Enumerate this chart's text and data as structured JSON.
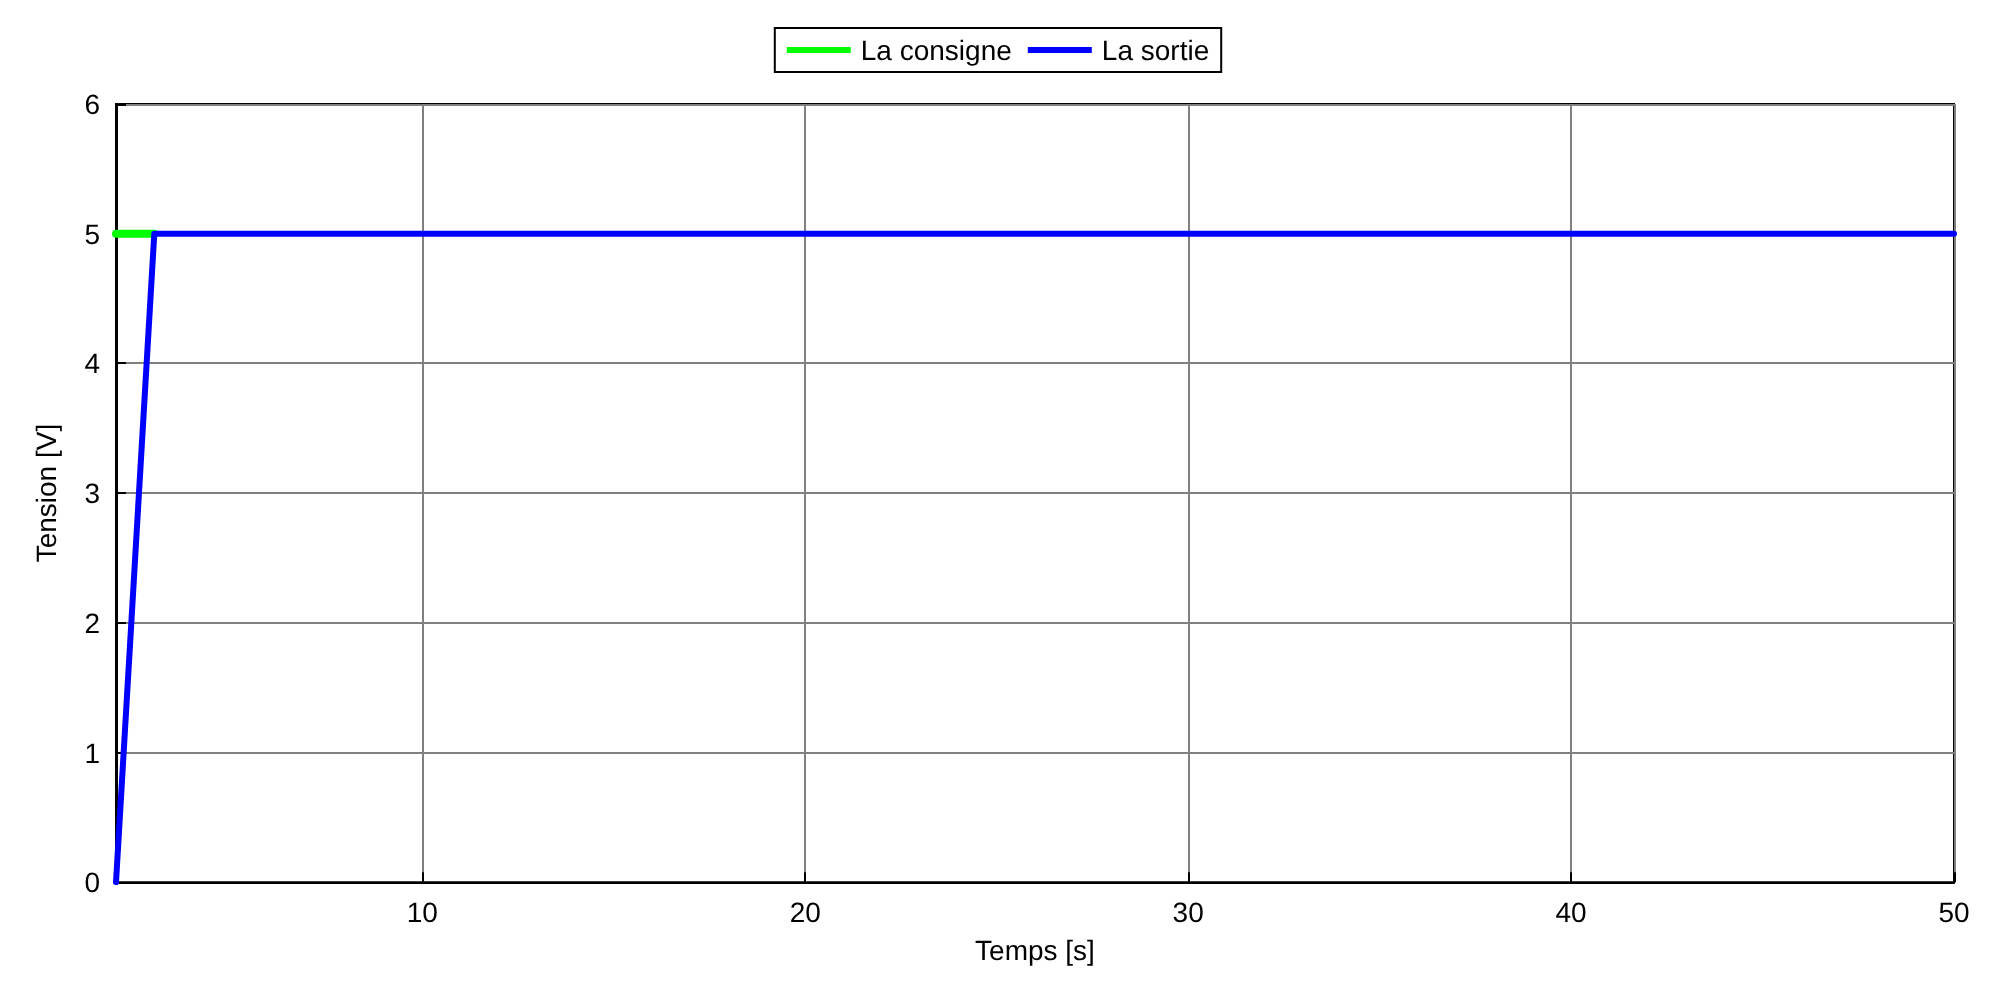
{
  "chart_data": {
    "type": "line",
    "xlabel": "Temps [s]",
    "ylabel": "Tension [V]",
    "xlim": [
      2,
      50
    ],
    "xticks": [
      10,
      20,
      30,
      40,
      50
    ],
    "ylim": [
      0,
      6
    ],
    "yticks": [
      0,
      1,
      2,
      3,
      4,
      5,
      6
    ],
    "grid": true,
    "legend": "top",
    "line_style": "solid",
    "marker": "none",
    "series": [
      {
        "name": "La consigne",
        "color": "#00ff00",
        "x": [
          2,
          3
        ],
        "values": [
          5,
          5
        ]
      },
      {
        "name": "La sortie",
        "color": "#0000ff",
        "x": [
          2,
          3,
          50
        ],
        "values": [
          0,
          5,
          5
        ]
      }
    ]
  }
}
